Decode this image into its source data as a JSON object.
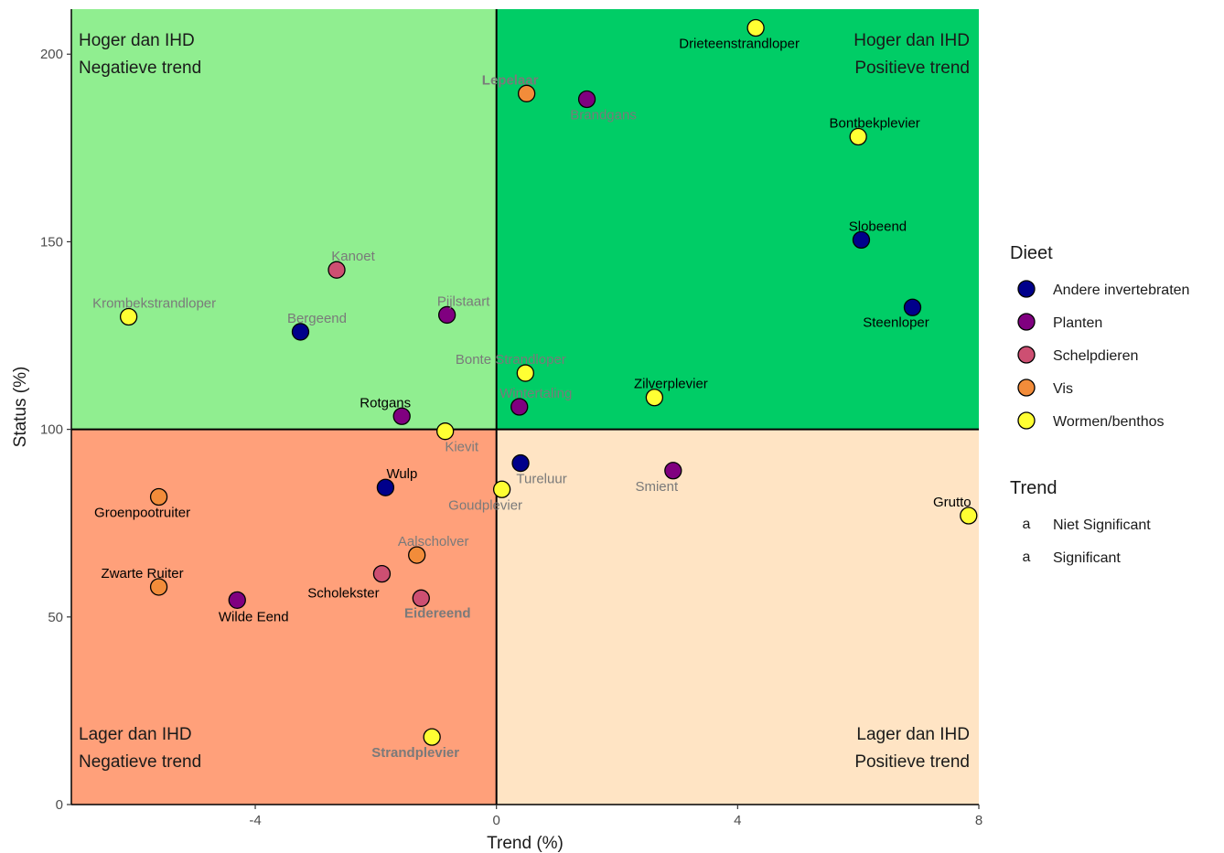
{
  "chart_data": {
    "type": "scatter",
    "xlabel": "Trend (%)",
    "ylabel": "Status (%)",
    "xlim": [
      -7.05,
      8.0
    ],
    "ylim": [
      0,
      212
    ],
    "x_ticks": [
      -4,
      0,
      4,
      8
    ],
    "y_ticks": [
      0,
      50,
      100,
      150,
      200
    ],
    "x_tick_labels": [
      "-4",
      "0",
      "4",
      "8"
    ],
    "y_tick_labels": [
      "0",
      "50",
      "100",
      "150",
      "200"
    ],
    "grid": false,
    "reference_lines": {
      "x": 0,
      "y": 100
    },
    "quadrants": [
      {
        "id": "top-left",
        "line1": "Hoger dan IHD",
        "line2": "Negatieve trend",
        "color": "#90ee90",
        "align": "left"
      },
      {
        "id": "top-right",
        "line1": "Hoger dan IHD",
        "line2": "Positieve trend",
        "color": "#00cd66",
        "align": "right"
      },
      {
        "id": "bottom-left",
        "line1": "Lager dan IHD",
        "line2": "Negatieve trend",
        "color": "#ffa07a",
        "align": "left"
      },
      {
        "id": "bottom-right",
        "line1": "Lager dan IHD",
        "line2": "Positieve trend",
        "color": "#ffe4c4",
        "align": "right"
      }
    ],
    "diet_colors": {
      "Andere invertebraten": "#00008b",
      "Planten": "#800080",
      "Schelpdieren": "#cd4f72",
      "Vis": "#f28c3a",
      "Wormen/benthos": "#ffff33"
    },
    "trend_colors": {
      "Niet Significant": "#7a7a7a",
      "Significant": "#000000"
    },
    "points": [
      {
        "name": "Drieteenstrandloper",
        "x": 4.3,
        "y": 207,
        "diet": "Wormen/benthos",
        "trend": "Significant",
        "bold": false
      },
      {
        "name": "Lepelaar",
        "x": 0.5,
        "y": 189.5,
        "diet": "Vis",
        "trend": "Niet Significant",
        "bold": true
      },
      {
        "name": "Brandgans",
        "x": 1.5,
        "y": 188,
        "diet": "Planten",
        "trend": "Niet Significant",
        "bold": false
      },
      {
        "name": "Bontbekplevier",
        "x": 6.0,
        "y": 178,
        "diet": "Wormen/benthos",
        "trend": "Significant",
        "bold": false
      },
      {
        "name": "Slobeend",
        "x": 6.05,
        "y": 150.5,
        "diet": "Andere invertebraten",
        "trend": "Significant",
        "bold": false
      },
      {
        "name": "Steenloper",
        "x": 6.9,
        "y": 132.5,
        "diet": "Andere invertebraten",
        "trend": "Significant",
        "bold": false
      },
      {
        "name": "Kanoet",
        "x": -2.65,
        "y": 142.5,
        "diet": "Schelpdieren",
        "trend": "Niet Significant",
        "bold": false
      },
      {
        "name": "Krombekstrandloper",
        "x": -6.1,
        "y": 130,
        "diet": "Wormen/benthos",
        "trend": "Niet Significant",
        "bold": false
      },
      {
        "name": "Pijlstaart",
        "x": -0.82,
        "y": 130.5,
        "diet": "Planten",
        "trend": "Niet Significant",
        "bold": false
      },
      {
        "name": "Bergeend",
        "x": -3.25,
        "y": 126,
        "diet": "Andere invertebraten",
        "trend": "Niet Significant",
        "bold": false
      },
      {
        "name": "Bonte Strandloper",
        "x": 0.48,
        "y": 115,
        "diet": "Wormen/benthos",
        "trend": "Niet Significant",
        "bold": false
      },
      {
        "name": "Zilverplevier",
        "x": 2.62,
        "y": 108.5,
        "diet": "Wormen/benthos",
        "trend": "Significant",
        "bold": false
      },
      {
        "name": "Wintertaling",
        "x": 0.38,
        "y": 106,
        "diet": "Planten",
        "trend": "Niet Significant",
        "bold": false
      },
      {
        "name": "Rotgans",
        "x": -1.57,
        "y": 103.5,
        "diet": "Planten",
        "trend": "Significant",
        "bold": false
      },
      {
        "name": "Kievit",
        "x": -0.85,
        "y": 99.5,
        "diet": "Wormen/benthos",
        "trend": "Niet Significant",
        "bold": false
      },
      {
        "name": "Tureluur",
        "x": 0.4,
        "y": 91,
        "diet": "Andere invertebraten",
        "trend": "Niet Significant",
        "bold": false
      },
      {
        "name": "Smient",
        "x": 2.93,
        "y": 89,
        "diet": "Planten",
        "trend": "Niet Significant",
        "bold": false
      },
      {
        "name": "Wulp",
        "x": -1.84,
        "y": 84.5,
        "diet": "Andere invertebraten",
        "trend": "Significant",
        "bold": false
      },
      {
        "name": "Goudplevier",
        "x": 0.09,
        "y": 84,
        "diet": "Wormen/benthos",
        "trend": "Niet Significant",
        "bold": false
      },
      {
        "name": "Groenpootruiter",
        "x": -5.6,
        "y": 82,
        "diet": "Vis",
        "trend": "Significant",
        "bold": false
      },
      {
        "name": "Grutto",
        "x": 7.83,
        "y": 77,
        "diet": "Wormen/benthos",
        "trend": "Significant",
        "bold": false
      },
      {
        "name": "Aalscholver",
        "x": -1.32,
        "y": 66.5,
        "diet": "Vis",
        "trend": "Niet Significant",
        "bold": false
      },
      {
        "name": "Scholekster",
        "x": -1.9,
        "y": 61.5,
        "diet": "Schelpdieren",
        "trend": "Significant",
        "bold": false
      },
      {
        "name": "Zwarte Ruiter",
        "x": -5.6,
        "y": 58,
        "diet": "Vis",
        "trend": "Significant",
        "bold": false
      },
      {
        "name": "Eidereend",
        "x": -1.25,
        "y": 55,
        "diet": "Schelpdieren",
        "trend": "Niet Significant",
        "bold": true
      },
      {
        "name": "Wilde Eend",
        "x": -4.3,
        "y": 54.5,
        "diet": "Planten",
        "trend": "Significant",
        "bold": false
      },
      {
        "name": "Strandplevier",
        "x": -1.07,
        "y": 18,
        "diet": "Wormen/benthos",
        "trend": "Niet Significant",
        "bold": true
      }
    ],
    "legend": {
      "placement": "right",
      "diet_title": "Dieet",
      "diet_entries": [
        "Andere invertebraten",
        "Planten",
        "Schelpdieren",
        "Vis",
        "Wormen/benthos"
      ],
      "trend_title": "Trend",
      "trend_entries": [
        {
          "key": "a",
          "label": "Niet Significant"
        },
        {
          "key": "a",
          "label": "Significant"
        }
      ]
    }
  }
}
